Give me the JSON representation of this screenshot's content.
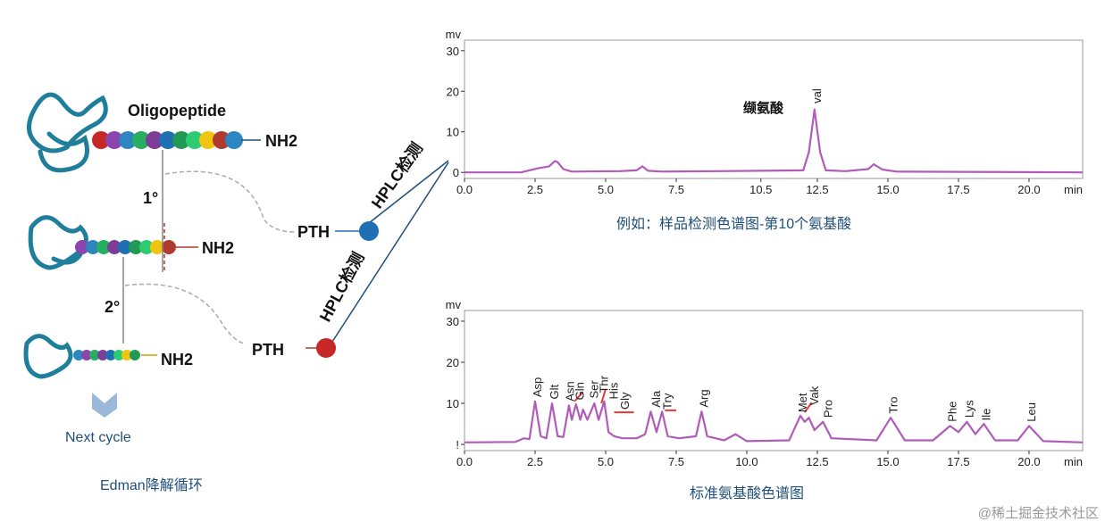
{
  "diagram": {
    "oligopeptide": "Oligopeptide",
    "nh2": [
      "NH2",
      "NH2",
      "NH2"
    ],
    "cycles": [
      "1°",
      "2°"
    ],
    "pth": [
      "PTH",
      "PTH"
    ],
    "hplc": [
      "HPLC检测",
      "HPLC检测"
    ],
    "next_cycle": "Next cycle",
    "caption": "Edman降解循环"
  },
  "captions": {
    "sample": "例如：样品检测色谱图-第10个氨基酸",
    "standard": "标准氨基酸色谱图"
  },
  "watermark": "@稀土掘金技术社区",
  "chart_data": [
    {
      "type": "line",
      "y_label": "mv",
      "x_label": "min",
      "annotation": "缬氨酸",
      "peak_labels": [
        "val"
      ],
      "color": "#b05cb8",
      "x": [
        0,
        2,
        2.3,
        2.6,
        3,
        3.2,
        3.3,
        3.5,
        3.8,
        5.5,
        6.1,
        6.3,
        6.5,
        7,
        9,
        12,
        12.2,
        12.4,
        12.6,
        12.8,
        13.5,
        14.3,
        14.5,
        14.8,
        15.3,
        21.9
      ],
      "values": [
        0,
        0,
        0.5,
        1,
        1.5,
        2.8,
        2.5,
        0.8,
        0.2,
        0.3,
        0.5,
        1.5,
        0.4,
        0.2,
        0.3,
        0.5,
        5,
        15.5,
        5,
        0.5,
        0.3,
        0.8,
        2,
        0.7,
        0.2,
        0
      ],
      "xlim": [
        0,
        21.9
      ],
      "ylim": [
        -1.5,
        32.6
      ],
      "xticks": [
        {
          "value": 0,
          "label": "0.0"
        },
        2.5,
        {
          "value": 5,
          "label": "5.0"
        },
        7.5,
        10.5,
        12.5,
        {
          "value": 15,
          "label": "15.0"
        },
        17.5,
        {
          "value": 20,
          "label": "20.0"
        }
      ],
      "yticks": [
        0,
        10,
        20,
        30
      ]
    },
    {
      "type": "line",
      "y_label": "mv",
      "x_label": "min",
      "peak_labels": [
        "Asp",
        "Glt",
        "Asn",
        "Gln",
        "Ser",
        "Thr",
        "His",
        "Gly",
        "Ala",
        "Try",
        "Arg",
        "Met",
        "Vak",
        "Pro",
        "Tro",
        "Phe",
        "Lys",
        "Ile",
        "Leu"
      ],
      "color": "#b05cb8",
      "x": [
        0,
        1.8,
        2.1,
        2.3,
        2.5,
        2.7,
        2.9,
        3.1,
        3.3,
        3.5,
        3.7,
        3.8,
        3.95,
        4.1,
        4.2,
        4.35,
        4.6,
        4.75,
        4.95,
        5.1,
        5.3,
        5.6,
        6.1,
        6.4,
        6.6,
        6.8,
        7.0,
        7.2,
        7.6,
        8.2,
        8.4,
        8.6,
        9.2,
        9.6,
        10,
        11.5,
        11.9,
        12.05,
        12.2,
        12.4,
        12.7,
        13,
        14.6,
        15.1,
        15.6,
        16.6,
        17.2,
        17.5,
        17.8,
        18.1,
        18.4,
        18.8,
        19.6,
        20.0,
        20.5,
        21.9
      ],
      "values": [
        0.5,
        0.6,
        1.5,
        1.3,
        10.5,
        2,
        1.5,
        10,
        2,
        1.8,
        9.5,
        6,
        9.8,
        6,
        8.5,
        6,
        10,
        6,
        10.5,
        3,
        2,
        1.5,
        1.5,
        2.5,
        8,
        3,
        8,
        2,
        1.5,
        2,
        8,
        2,
        1,
        2.5,
        0.8,
        1,
        7,
        5.5,
        6.5,
        3.5,
        5.5,
        1.5,
        1,
        6.5,
        1,
        1,
        4.5,
        3,
        5.5,
        2.5,
        5,
        1,
        1,
        4.5,
        0.8,
        0.5
      ],
      "xlim": [
        0,
        21.9
      ],
      "ylim": [
        -1.5,
        32.6
      ],
      "xticks": [
        {
          "value": 0,
          "label": "0.0"
        },
        2.5,
        {
          "value": 5,
          "label": "5.0"
        },
        7.5,
        {
          "value": 10,
          "label": "10.0"
        },
        12.5,
        {
          "value": 15,
          "label": "15.0"
        },
        17.5,
        {
          "value": 20,
          "label": "20.0"
        }
      ],
      "yticks": [
        {
          "value": 0,
          "label": "!"
        },
        10,
        20,
        30
      ]
    }
  ]
}
